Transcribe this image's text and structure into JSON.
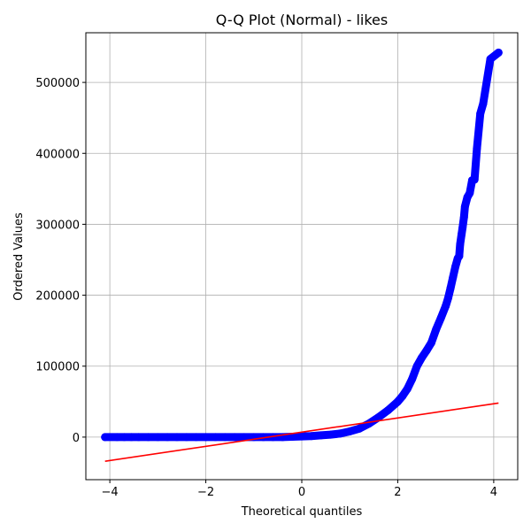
{
  "chart_data": {
    "type": "scatter",
    "title": "Q-Q Plot (Normal) - likes",
    "xlabel": "Theoretical quantiles",
    "ylabel": "Ordered Values",
    "xlim": [
      -4.5,
      4.5
    ],
    "ylim": [
      -60000,
      570000
    ],
    "xticks": [
      -4,
      -2,
      0,
      2,
      4
    ],
    "xtick_labels": [
      "−4",
      "−2",
      "0",
      "2",
      "4"
    ],
    "yticks": [
      0,
      100000,
      200000,
      300000,
      400000,
      500000
    ],
    "ytick_labels": [
      "0",
      "100000",
      "200000",
      "300000",
      "400000",
      "500000"
    ],
    "grid": true,
    "point_color": "#0000ff",
    "line_color": "#ff0000",
    "series": [
      {
        "kind": "points",
        "x": [
          -4.1,
          -3.85,
          -3.7,
          -3.55,
          -3.4,
          -3.2,
          -3.0,
          -2.8,
          -2.6,
          -2.4,
          -2.2,
          -2.0,
          -1.8,
          -1.6,
          -1.4,
          -1.2,
          -1.0,
          -0.8,
          -0.6,
          -0.4,
          -0.2,
          0.0,
          0.2,
          0.4,
          0.6,
          0.8,
          1.0,
          1.2,
          1.4,
          1.6,
          1.8,
          2.0,
          2.1,
          2.2,
          2.3,
          2.4,
          2.5,
          2.6,
          2.7,
          2.8,
          2.9,
          3.0,
          3.05,
          3.1,
          3.15,
          3.2,
          3.25,
          3.28,
          3.3,
          3.33,
          3.35,
          3.38,
          3.4,
          3.45,
          3.5,
          3.55,
          3.6,
          3.65,
          3.72,
          3.78,
          3.93,
          4.1
        ],
        "y": [
          0,
          0,
          0,
          0,
          0,
          0,
          0,
          0,
          0,
          0,
          0,
          0,
          0,
          0,
          0,
          0,
          0,
          0,
          0,
          0,
          500,
          1000,
          1500,
          2500,
          3500,
          5000,
          8000,
          12000,
          19000,
          28000,
          38000,
          50000,
          58000,
          68000,
          82000,
          100000,
          112000,
          122000,
          133000,
          152000,
          168000,
          185000,
          196000,
          210000,
          225000,
          240000,
          252000,
          255000,
          272000,
          286000,
          295000,
          310000,
          325000,
          338000,
          344000,
          362000,
          363000,
          407000,
          456000,
          470000,
          533000,
          542000
        ]
      },
      {
        "kind": "fit_line",
        "x": [
          -4.1,
          4.1
        ],
        "y": [
          -34000,
          48000
        ]
      }
    ]
  }
}
